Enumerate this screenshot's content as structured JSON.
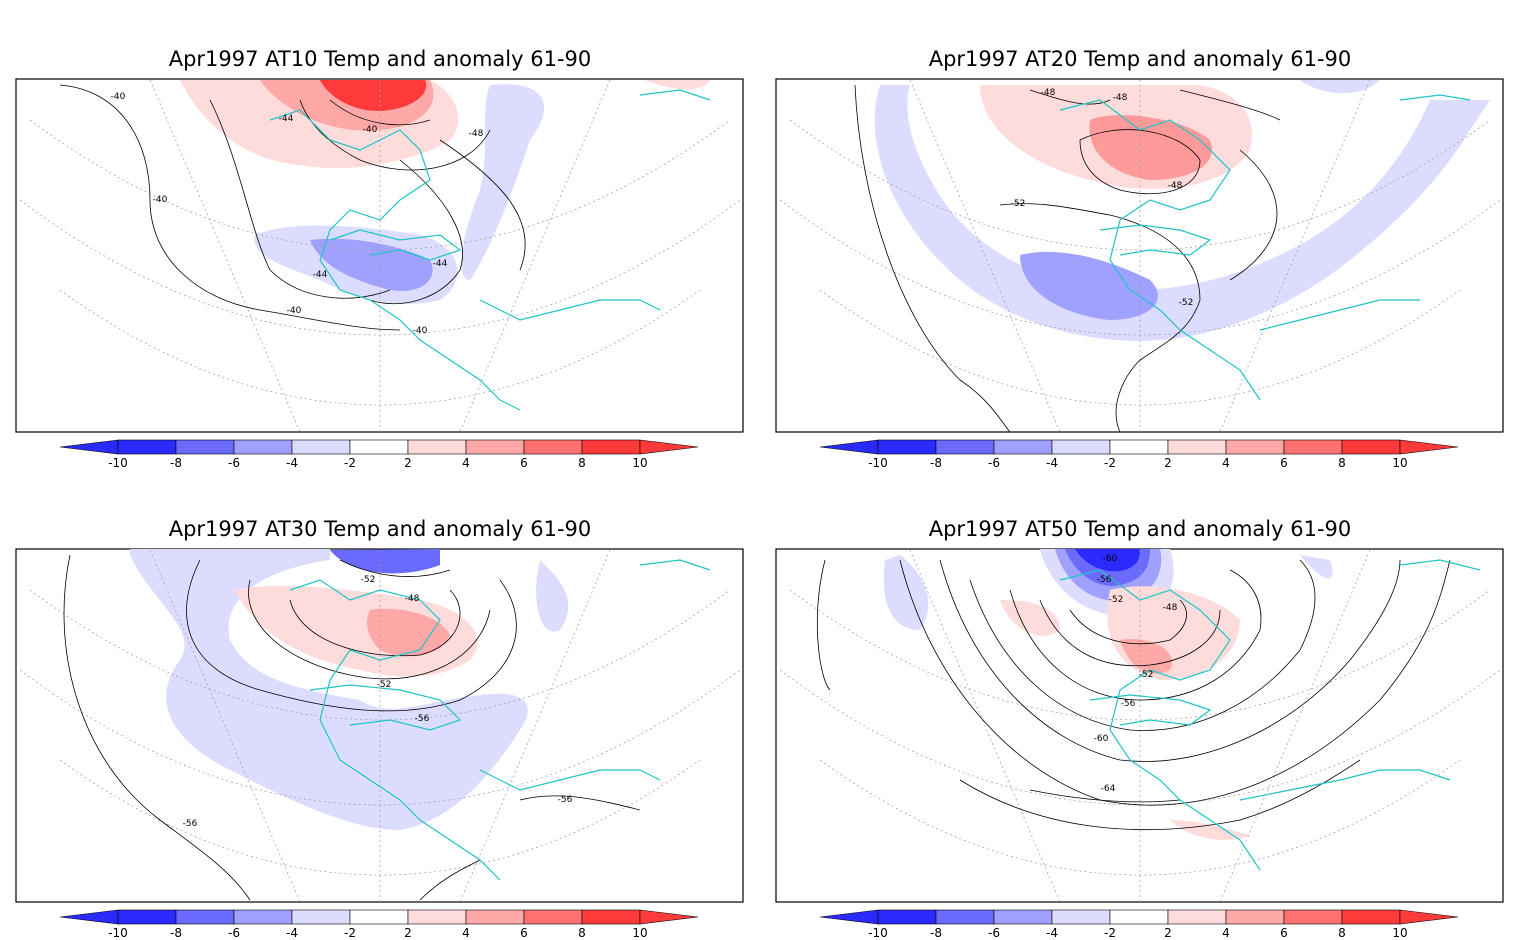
{
  "colors": {
    "neg_strong": "#2a2aff",
    "neg_mid": "#6a6aff",
    "neg_light": "#a0a0ff",
    "neg_faint": "#dcdcff",
    "pos_faint": "#ffdcdc",
    "pos_light": "#ffa8a8",
    "pos_mid": "#ff7070",
    "pos_strong": "#ff3a3a",
    "coast": "#20c4c4",
    "contour": "#000000",
    "grid": "#999999"
  },
  "colorbar": {
    "tick_labels": [
      "-10",
      "-8",
      "-6",
      "-4",
      "-2",
      "2",
      "4",
      "6",
      "8",
      "10"
    ]
  },
  "panels": [
    {
      "title": "Apr1997 AT10 Temp and anomaly 61-90",
      "contour_labels": [
        "-40",
        "-44",
        "-40",
        "-48",
        "-40",
        "-44",
        "-44",
        "-40",
        "-40"
      ]
    },
    {
      "title": "Apr1997 AT20 Temp and anomaly 61-90",
      "contour_labels": [
        "-48",
        "-48",
        "-48",
        "-52",
        "-52"
      ]
    },
    {
      "title": "Apr1997 AT30 Temp and anomaly 61-90",
      "contour_labels": [
        "-52",
        "-48",
        "-52",
        "-56",
        "-56",
        "-56"
      ]
    },
    {
      "title": "Apr1997 AT50 Temp and anomaly 61-90",
      "contour_labels": [
        "-60",
        "-56",
        "-52",
        "-48",
        "-52",
        "-56",
        "-60",
        "-64"
      ]
    }
  ]
}
